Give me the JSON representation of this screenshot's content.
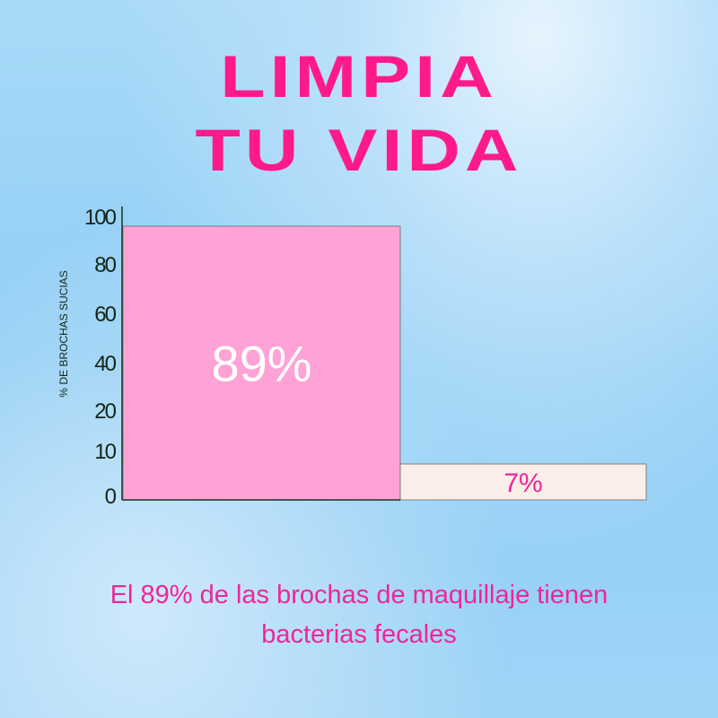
{
  "title_lines": [
    "LIMPIA",
    "TU VIDA"
  ],
  "caption_lines": [
    "El 89% de las brochas de maquillaje tienen",
    "bacterias fecales"
  ],
  "colors": {
    "title": "#ff1a8c",
    "bar_main": "#ffa3d6",
    "bar_secondary": "#faefe8",
    "label_secondary": "#f0259a"
  },
  "chart_data": {
    "type": "bar",
    "categories": [
      "",
      ""
    ],
    "values": [
      89,
      7
    ],
    "data_labels": [
      "89%",
      "7%"
    ],
    "ylabel": "% DE BROCHAS SUCIAS",
    "yticks": [
      0,
      10,
      20,
      40,
      60,
      80,
      100
    ],
    "ylim": [
      0,
      100
    ],
    "grid": false
  }
}
